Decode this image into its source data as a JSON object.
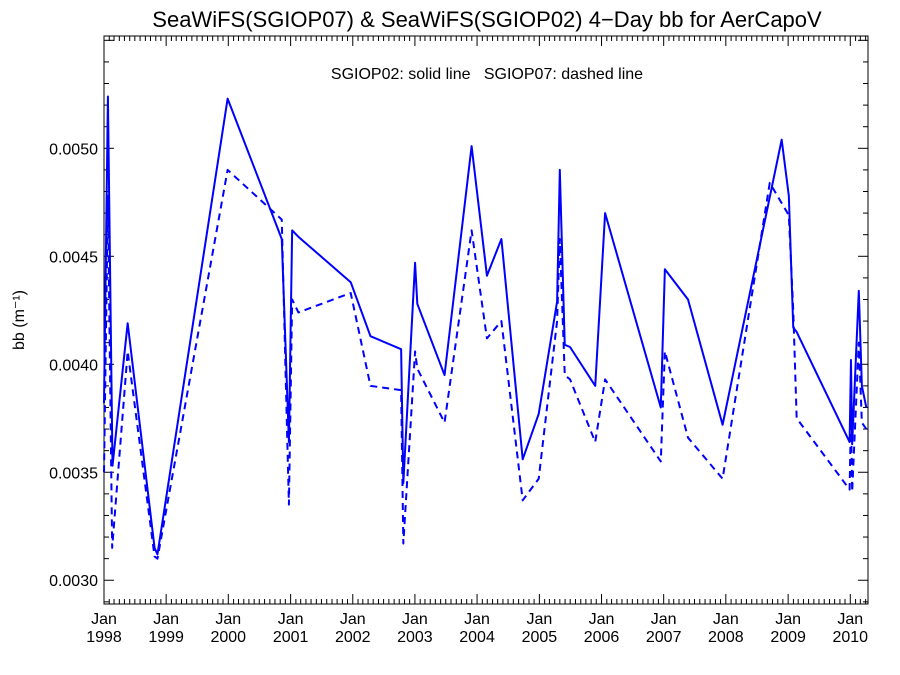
{
  "chart_data": {
    "type": "line",
    "title": "SeaWiFS(SGIOP07) & SeaWiFS(SGIOP02) 4−Day bb for AerCapoV",
    "annotation": "SGIOP02: solid line   SGIOP07: dashed line",
    "ylabel": "bb (m⁻¹)",
    "xlabel": "",
    "ylim": [
      0.00289,
      0.00552
    ],
    "xlim": [
      "1998-01-01",
      "2010-04-15"
    ],
    "yticks": [
      0.003,
      0.0035,
      0.004,
      0.0045,
      0.005
    ],
    "ytick_labels": [
      "0.0030",
      "0.0035",
      "0.0040",
      "0.0045",
      "0.0050"
    ],
    "xticks": [
      {
        "month": "Jan",
        "year": "1998",
        "date": "1998-01-01"
      },
      {
        "month": "Jan",
        "year": "1999",
        "date": "1999-01-01"
      },
      {
        "month": "Jan",
        "year": "2000",
        "date": "2000-01-01"
      },
      {
        "month": "Jan",
        "year": "2001",
        "date": "2001-01-01"
      },
      {
        "month": "Jan",
        "year": "2002",
        "date": "2002-01-01"
      },
      {
        "month": "Jan",
        "year": "2003",
        "date": "2003-01-01"
      },
      {
        "month": "Jan",
        "year": "2004",
        "date": "2004-01-01"
      },
      {
        "month": "Jan",
        "year": "2005",
        "date": "2005-01-01"
      },
      {
        "month": "Jan",
        "year": "2006",
        "date": "2006-01-01"
      },
      {
        "month": "Jan",
        "year": "2007",
        "date": "2007-01-01"
      },
      {
        "month": "Jan",
        "year": "2008",
        "date": "2008-01-01"
      },
      {
        "month": "Jan",
        "year": "2009",
        "date": "2009-01-01"
      },
      {
        "month": "Jan",
        "year": "2010",
        "date": "2010-01-01"
      }
    ],
    "grid": false,
    "legend": "none",
    "line_color": "#0000ff",
    "series": [
      {
        "style": "solid",
        "x": [
          "1998-01-01",
          "1998-01-24",
          "1998-02-20",
          "1998-05-20",
          "1998-10-25",
          "1998-11-11",
          "1999-12-28",
          "2000-11-10",
          "2000-12-22",
          "2001-01-10",
          "2001-02-16",
          "2001-12-20",
          "2002-04-15",
          "2002-10-12",
          "2002-10-25",
          "2003-01-02",
          "2003-01-15",
          "2003-06-24",
          "2003-11-30",
          "2004-02-28",
          "2004-05-23",
          "2004-09-25",
          "2004-12-28",
          "2005-04-15",
          "2005-05-01",
          "2005-05-30",
          "2005-06-30",
          "2005-11-25",
          "2006-01-22",
          "2006-12-15",
          "2007-01-08",
          "2007-05-24",
          "2007-12-13",
          "2008-11-24",
          "2009-01-05",
          "2009-01-31",
          "2009-02-20",
          "2009-12-28",
          "2010-01-05",
          "2010-01-12",
          "2010-02-20",
          "2010-03-10",
          "2010-04-05"
        ],
        "y": [
          0.00382,
          0.00524,
          0.00353,
          0.00419,
          0.00315,
          0.00312,
          0.00523,
          0.00458,
          0.00364,
          0.00462,
          0.00459,
          0.00438,
          0.00413,
          0.00407,
          0.00345,
          0.00447,
          0.00428,
          0.00395,
          0.00501,
          0.00441,
          0.00458,
          0.00356,
          0.00377,
          0.00429,
          0.0049,
          0.00409,
          0.00408,
          0.0039,
          0.0047,
          0.0038,
          0.00444,
          0.0043,
          0.00372,
          0.00504,
          0.00478,
          0.00417,
          0.00415,
          0.00364,
          0.00402,
          0.00363,
          0.00434,
          0.0039,
          0.0038
        ]
      },
      {
        "style": "dashed",
        "x": [
          "1998-01-01",
          "1998-01-24",
          "1998-02-18",
          "1998-05-20",
          "1998-10-25",
          "1998-11-11",
          "1999-12-28",
          "2000-11-10",
          "2000-12-22",
          "2001-01-10",
          "2001-02-16",
          "2001-12-20",
          "2002-04-15",
          "2002-10-12",
          "2002-10-25",
          "2003-01-02",
          "2003-01-15",
          "2003-06-24",
          "2003-11-30",
          "2004-02-28",
          "2004-05-23",
          "2004-09-25",
          "2004-12-28",
          "2005-04-15",
          "2005-05-01",
          "2005-05-30",
          "2005-06-30",
          "2005-11-25",
          "2006-01-22",
          "2006-12-15",
          "2007-01-08",
          "2007-05-24",
          "2007-12-13",
          "2008-09-15",
          "2009-01-05",
          "2009-01-31",
          "2009-02-20",
          "2009-12-28",
          "2010-01-05",
          "2010-01-12",
          "2010-02-20",
          "2010-03-10",
          "2010-04-05"
        ],
        "y": [
          0.0035,
          0.00478,
          0.00315,
          0.00406,
          0.00311,
          0.0031,
          0.0049,
          0.00467,
          0.00335,
          0.0043,
          0.00424,
          0.00433,
          0.0039,
          0.00388,
          0.00317,
          0.00406,
          0.00398,
          0.00373,
          0.00462,
          0.00412,
          0.0042,
          0.00337,
          0.00347,
          0.0042,
          0.00458,
          0.00395,
          0.00393,
          0.00364,
          0.00393,
          0.00355,
          0.00406,
          0.00366,
          0.00347,
          0.00484,
          0.00469,
          0.00425,
          0.00375,
          0.00342,
          0.00377,
          0.00341,
          0.0041,
          0.00373,
          0.0037
        ]
      }
    ]
  }
}
